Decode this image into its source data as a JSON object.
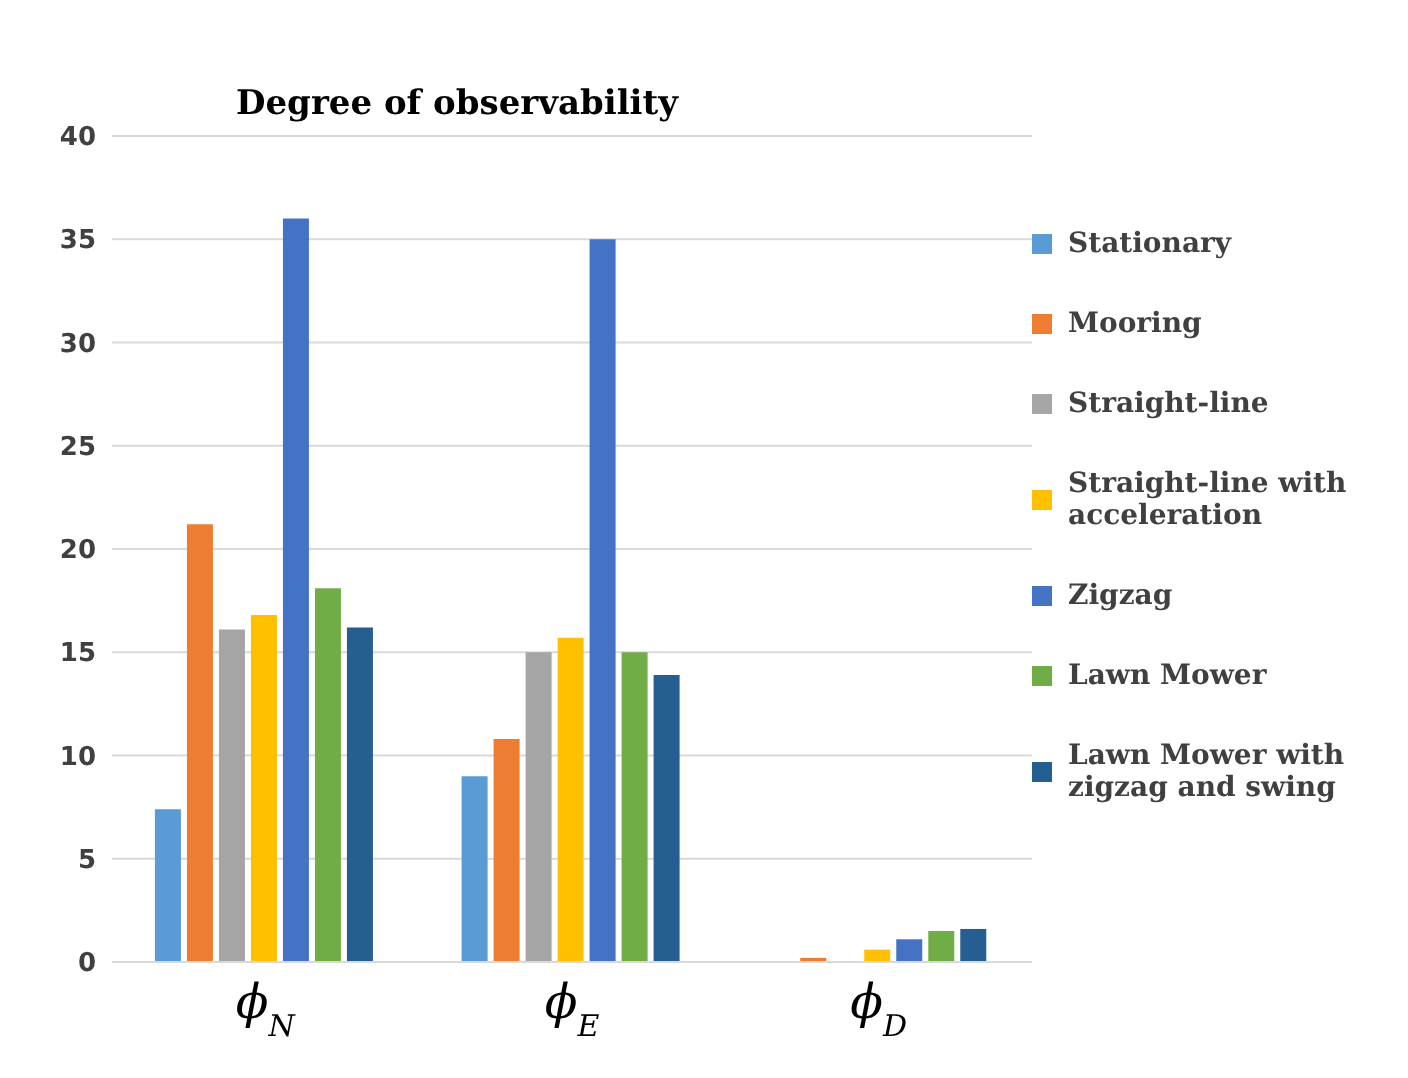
{
  "chart_data": {
    "type": "bar",
    "title": "Degree of observability",
    "categories": [
      "ϕ$_{N}$",
      "ϕ$_{E}$",
      "ϕ$_{D}$"
    ],
    "series": [
      {
        "name": "Stationary",
        "color": "#5b9bd5",
        "values": [
          7.4,
          9,
          0
        ]
      },
      {
        "name": "Mooring",
        "color": "#ed7d31",
        "values": [
          21.2,
          10.8,
          0.2
        ]
      },
      {
        "name": "Straight-line",
        "color": "#a5a5a5",
        "values": [
          16.1,
          15,
          0
        ]
      },
      {
        "name": "Straight-line with acceleration",
        "color": "#ffc000",
        "values": [
          16.8,
          15.7,
          0.6
        ]
      },
      {
        "name": "Zigzag",
        "color": "#4472c4",
        "values": [
          36,
          35,
          1.1
        ]
      },
      {
        "name": "Lawn Mower",
        "color": "#70ad47",
        "values": [
          18.1,
          15,
          1.5
        ]
      },
      {
        "name": "Lawn Mower with zigzag and swing",
        "color": "#255e91",
        "values": [
          16.2,
          13.9,
          1.6
        ]
      }
    ],
    "ylim": [
      0,
      40
    ],
    "yticks": [
      0,
      5,
      10,
      15,
      20,
      25,
      30,
      35,
      40
    ],
    "grid": "y",
    "legend": "right"
  }
}
